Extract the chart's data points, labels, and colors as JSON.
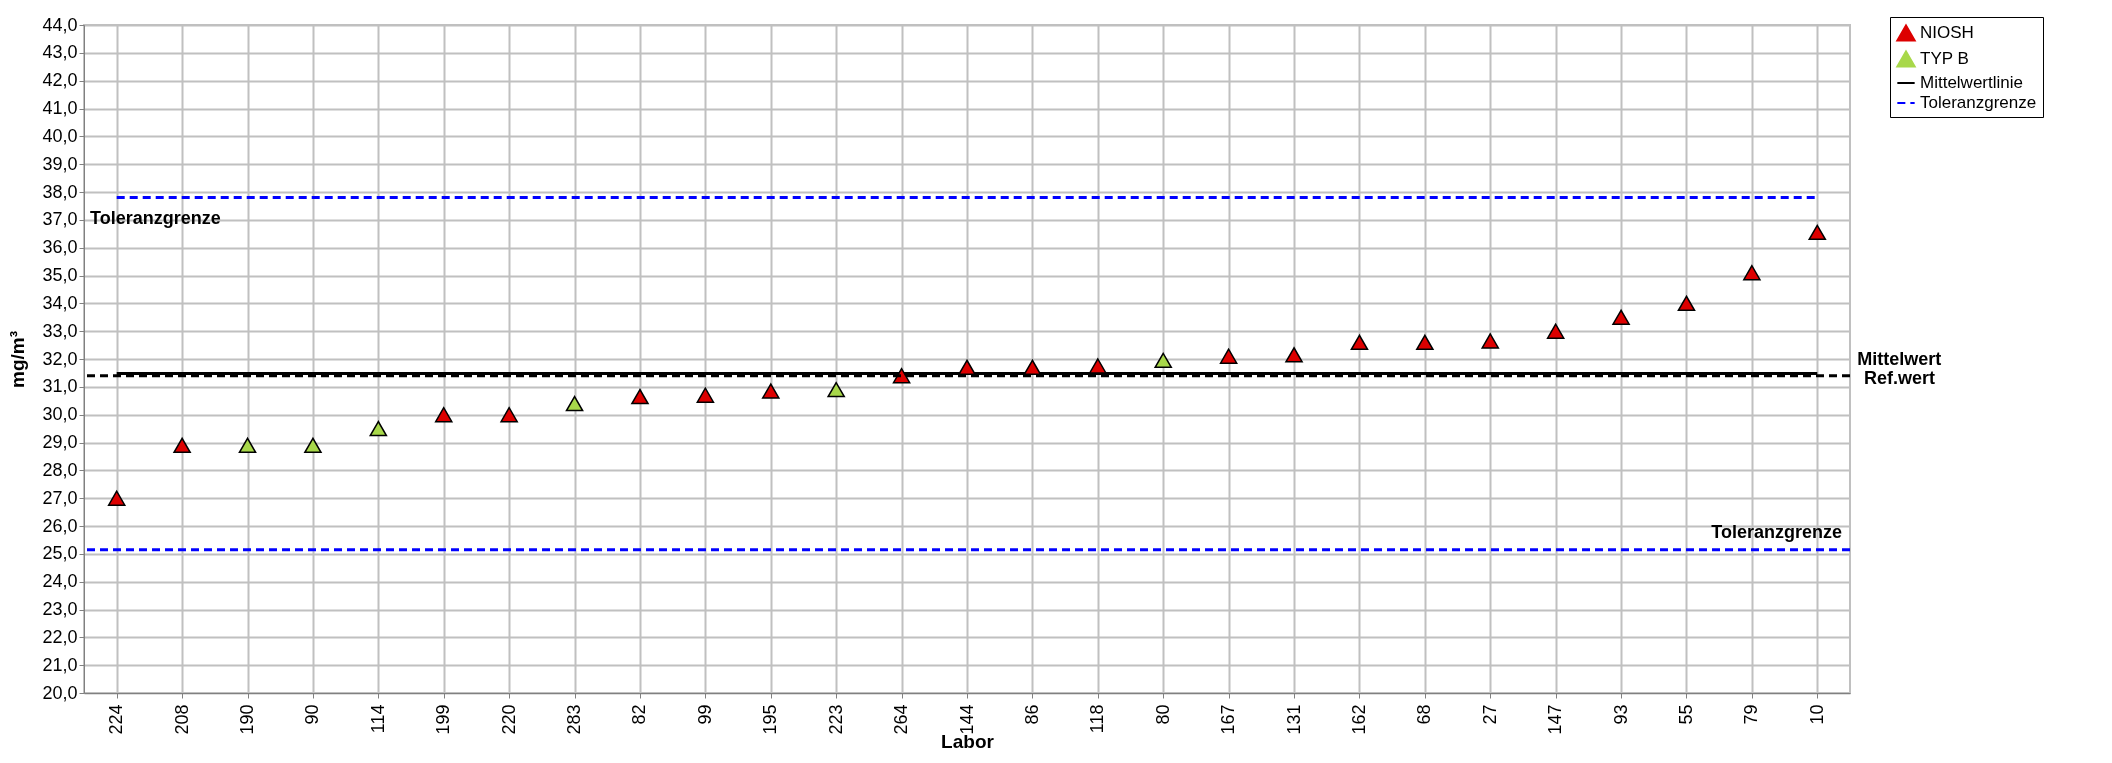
{
  "chart_data": {
    "type": "scatter",
    "xlabel": "Labor",
    "ylabel": "mg/m³",
    "categories": [
      "224",
      "208",
      "190",
      "90",
      "114",
      "199",
      "220",
      "283",
      "82",
      "99",
      "195",
      "223",
      "264",
      "144",
      "86",
      "118",
      "80",
      "167",
      "131",
      "162",
      "68",
      "27",
      "147",
      "93",
      "55",
      "79",
      "10"
    ],
    "series": [
      {
        "name": "NIOSH",
        "color": "#dd0000",
        "values": [
          27.0,
          28.9,
          null,
          null,
          null,
          30.0,
          30.0,
          null,
          30.65,
          30.7,
          30.85,
          null,
          31.4,
          31.7,
          31.7,
          31.75,
          null,
          32.1,
          32.15,
          32.6,
          32.6,
          32.65,
          33.0,
          33.5,
          34.0,
          35.1,
          36.55
        ]
      },
      {
        "name": "TYP B",
        "color": "#a8d84a",
        "values": [
          null,
          null,
          28.9,
          28.9,
          29.5,
          null,
          null,
          30.4,
          null,
          null,
          null,
          30.9,
          null,
          null,
          null,
          null,
          31.95,
          null,
          null,
          null,
          null,
          null,
          null,
          null,
          null,
          null,
          null
        ]
      },
      {
        "name": "Mittelwertlinie",
        "type": "line",
        "color": "#000000",
        "line_style": "solid",
        "marker": "none",
        "values": [
          31.48,
          31.48,
          31.48,
          31.48,
          31.48,
          31.48,
          31.48,
          31.48,
          31.48,
          31.48,
          31.48,
          31.48,
          31.48,
          31.48,
          31.48,
          31.48,
          31.48,
          31.48,
          31.48,
          31.48,
          31.48,
          31.48,
          31.48,
          31.48,
          31.48,
          31.48,
          31.48
        ]
      },
      {
        "name": "Toleranzgrenze",
        "type": "line",
        "color": "#0000ff",
        "line_style": "dashed",
        "marker": "none",
        "values": [
          37.8,
          37.8,
          37.8,
          37.8,
          37.8,
          37.8,
          37.8,
          37.8,
          37.8,
          37.8,
          37.8,
          37.8,
          37.8,
          37.8,
          37.8,
          37.8,
          37.8,
          37.8,
          37.8,
          37.8,
          37.8,
          37.8,
          37.8,
          37.8,
          37.8,
          37.8,
          37.8
        ]
      }
    ],
    "ylim": [
      20,
      44
    ],
    "yticks": [
      {
        "value": 20,
        "label": "20,0"
      },
      {
        "value": 21,
        "label": "21,0"
      },
      {
        "value": 22,
        "label": "22,0"
      },
      {
        "value": 23,
        "label": "23,0"
      },
      {
        "value": 24,
        "label": "24,0"
      },
      {
        "value": 25,
        "label": "25,0"
      },
      {
        "value": 26,
        "label": "26,0"
      },
      {
        "value": 27,
        "label": "27,0"
      },
      {
        "value": 28,
        "label": "28,0"
      },
      {
        "value": 29,
        "label": "29,0"
      },
      {
        "value": 30,
        "label": "30,0"
      },
      {
        "value": 31,
        "label": "31,0"
      },
      {
        "value": 32,
        "label": "32,0"
      },
      {
        "value": 33,
        "label": "33,0"
      },
      {
        "value": 34,
        "label": "34,0"
      },
      {
        "value": 35,
        "label": "35,0"
      },
      {
        "value": 36,
        "label": "36,0"
      },
      {
        "value": 37,
        "label": "37,0"
      },
      {
        "value": 38,
        "label": "38,0"
      },
      {
        "value": 39,
        "label": "39,0"
      },
      {
        "value": 40,
        "label": "40,0"
      },
      {
        "value": 41,
        "label": "41,0"
      },
      {
        "value": 42,
        "label": "42,0"
      },
      {
        "value": 43,
        "label": "43,0"
      },
      {
        "value": 44,
        "label": "44,0"
      }
    ],
    "ref_lines": [
      {
        "axis": "y",
        "value": 31.4,
        "label": "Ref.wert",
        "color": "#000000",
        "line_style": "dashed"
      },
      {
        "axis": "y",
        "value": 25.15,
        "label": "Toleranzgrenze",
        "color": "#0000ff",
        "line_style": "dashed"
      }
    ],
    "annotations": [
      {
        "text": "Mittelwert",
        "x": "10",
        "y": 31.48
      },
      {
        "text": "Toleranzgrenze",
        "x": "224",
        "y": 37.8
      }
    ],
    "grid": true,
    "legend": "top right",
    "marker": "triangle"
  }
}
